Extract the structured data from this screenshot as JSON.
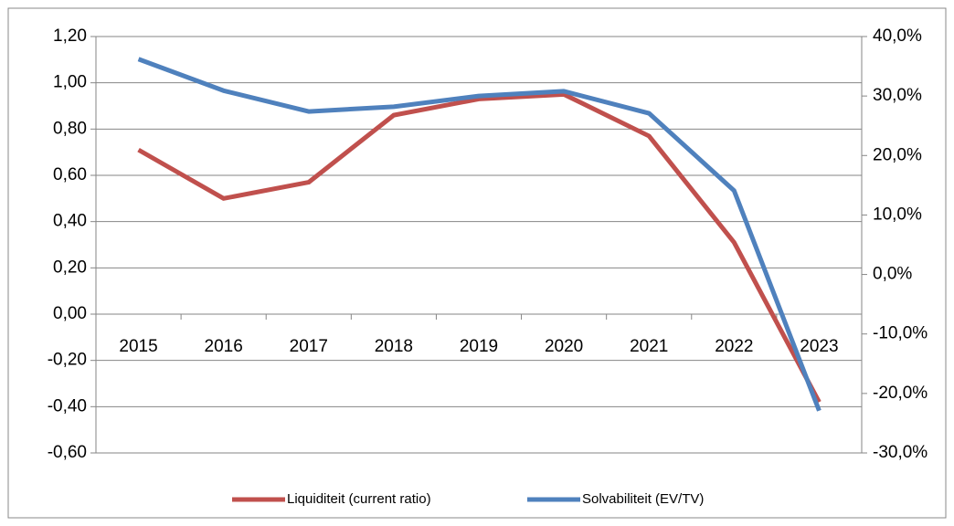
{
  "chart_data": {
    "type": "line",
    "categories": [
      "2015",
      "2016",
      "2017",
      "2018",
      "2019",
      "2020",
      "2021",
      "2022",
      "2023"
    ],
    "series": [
      {
        "name": "Liquiditeit (current ratio)",
        "color": "#c0504d",
        "values": [
          0.71,
          0.5,
          0.57,
          0.86,
          0.93,
          0.95,
          0.77,
          0.31,
          -0.38
        ]
      },
      {
        "name": "Solvabiliteit (EV/TV)",
        "color": "#4f81bd",
        "axis": "y2",
        "values": [
          36.2,
          30.9,
          27.4,
          28.2,
          30.0,
          30.8,
          27.1,
          14.1,
          -22.9
        ]
      }
    ],
    "ylim": [
      -0.6,
      1.2
    ],
    "yticks": [
      {
        "value": -0.6,
        "label": "-0,60"
      },
      {
        "value": -0.4,
        "label": "-0,40"
      },
      {
        "value": -0.2,
        "label": "-0,20"
      },
      {
        "value": 0,
        "label": "0,00"
      },
      {
        "value": 0.2,
        "label": "0,20"
      },
      {
        "value": 0.4,
        "label": "0,40"
      },
      {
        "value": 0.6,
        "label": "0,60"
      },
      {
        "value": 0.8,
        "label": "0,80"
      },
      {
        "value": 1.0,
        "label": "1,00"
      },
      {
        "value": 1.2,
        "label": "1,20"
      }
    ],
    "y2lim": [
      -30,
      40
    ],
    "y2ticks": [
      {
        "value": -30,
        "label": "-30,0%"
      },
      {
        "value": -20,
        "label": "-20,0%"
      },
      {
        "value": -10,
        "label": "-10,0%"
      },
      {
        "value": 0,
        "label": "0,0%"
      },
      {
        "value": 10,
        "label": "10,0%"
      },
      {
        "value": 20,
        "label": "20,0%"
      },
      {
        "value": 30,
        "label": "30,0%"
      },
      {
        "value": 40,
        "label": "40,0%"
      }
    ],
    "grid": true,
    "legend": "bottom"
  }
}
